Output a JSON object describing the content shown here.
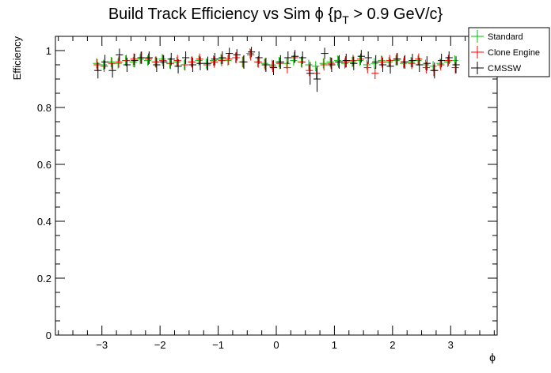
{
  "chart_data": {
    "type": "scatter",
    "title": "Build Track Efficiency vs Sim ϕ {p_T > 0.9 GeV/c}",
    "title_parts": {
      "main": "Build Track Efficiency vs Sim ϕ {p",
      "sub": "T",
      "tail": " > 0.9 GeV/c}"
    },
    "xlabel": "ϕ",
    "ylabel": "Efficiency",
    "xlim": [
      -3.8,
      3.8
    ],
    "ylim": [
      0,
      1.05
    ],
    "xticks": [
      -3,
      -2,
      -1,
      0,
      1,
      2,
      3
    ],
    "xtick_labels": [
      "−3",
      "−2",
      "−1",
      "0",
      "1",
      "2",
      "3"
    ],
    "yticks": [
      0,
      0.2,
      0.4,
      0.6,
      0.8,
      1
    ],
    "ytick_labels": [
      "0",
      "0.2",
      "0.4",
      "0.6",
      "0.8",
      "1"
    ],
    "x": [
      -3.08,
      -2.96,
      -2.83,
      -2.71,
      -2.58,
      -2.45,
      -2.33,
      -2.2,
      -2.07,
      -1.95,
      -1.82,
      -1.7,
      -1.57,
      -1.45,
      -1.32,
      -1.19,
      -1.07,
      -0.94,
      -0.82,
      -0.69,
      -0.57,
      -0.44,
      -0.31,
      -0.19,
      -0.06,
      0.06,
      0.19,
      0.31,
      0.44,
      0.57,
      0.69,
      0.82,
      0.94,
      1.07,
      1.19,
      1.32,
      1.45,
      1.57,
      1.7,
      1.82,
      1.95,
      2.07,
      2.2,
      2.33,
      2.45,
      2.58,
      2.71,
      2.83,
      2.96,
      3.08
    ],
    "x_error": 0.063,
    "series": [
      {
        "name": "Standard",
        "color": "#00c000",
        "values": [
          0.955,
          0.95,
          0.96,
          0.955,
          0.965,
          0.96,
          0.97,
          0.965,
          0.96,
          0.97,
          0.955,
          0.96,
          0.95,
          0.96,
          0.965,
          0.955,
          0.965,
          0.97,
          0.965,
          0.975,
          0.96,
          0.99,
          0.96,
          0.955,
          0.95,
          0.96,
          0.955,
          0.965,
          0.96,
          0.95,
          0.945,
          0.955,
          0.96,
          0.965,
          0.955,
          0.96,
          0.965,
          0.95,
          0.955,
          0.965,
          0.96,
          0.965,
          0.955,
          0.96,
          0.965,
          0.95,
          0.945,
          0.955,
          0.96,
          0.965
        ],
        "errors": [
          0.018,
          0.018,
          0.018,
          0.018,
          0.018,
          0.018,
          0.018,
          0.018,
          0.018,
          0.018,
          0.018,
          0.018,
          0.018,
          0.018,
          0.018,
          0.018,
          0.018,
          0.018,
          0.018,
          0.018,
          0.018,
          0.018,
          0.018,
          0.018,
          0.018,
          0.018,
          0.018,
          0.018,
          0.018,
          0.018,
          0.018,
          0.018,
          0.018,
          0.018,
          0.018,
          0.018,
          0.018,
          0.018,
          0.018,
          0.018,
          0.018,
          0.018,
          0.018,
          0.018,
          0.018,
          0.018,
          0.018,
          0.018,
          0.018,
          0.018
        ]
      },
      {
        "name": "Clone Engine",
        "color": "#ff0000",
        "values": [
          0.95,
          0.945,
          0.955,
          0.96,
          0.965,
          0.97,
          0.975,
          0.97,
          0.96,
          0.965,
          0.955,
          0.965,
          0.95,
          0.96,
          0.97,
          0.95,
          0.96,
          0.965,
          0.97,
          0.975,
          0.96,
          0.985,
          0.96,
          0.95,
          0.945,
          0.955,
          0.94,
          0.975,
          0.96,
          0.93,
          0.92,
          0.95,
          0.955,
          0.96,
          0.96,
          0.965,
          0.97,
          0.94,
          0.92,
          0.96,
          0.965,
          0.97,
          0.96,
          0.955,
          0.97,
          0.94,
          0.93,
          0.95,
          0.965,
          0.94
        ],
        "errors": [
          0.02,
          0.02,
          0.02,
          0.02,
          0.02,
          0.02,
          0.02,
          0.02,
          0.02,
          0.02,
          0.02,
          0.02,
          0.02,
          0.02,
          0.02,
          0.02,
          0.02,
          0.02,
          0.02,
          0.02,
          0.02,
          0.02,
          0.02,
          0.02,
          0.02,
          0.02,
          0.02,
          0.02,
          0.02,
          0.02,
          0.02,
          0.02,
          0.02,
          0.02,
          0.02,
          0.02,
          0.02,
          0.02,
          0.02,
          0.02,
          0.02,
          0.02,
          0.02,
          0.02,
          0.02,
          0.02,
          0.02,
          0.02,
          0.02,
          0.02
        ]
      },
      {
        "name": "CMSSW",
        "color": "#000000",
        "values": [
          0.93,
          0.96,
          0.93,
          0.985,
          0.95,
          0.965,
          0.975,
          0.975,
          0.95,
          0.96,
          0.97,
          0.945,
          0.975,
          0.95,
          0.955,
          0.955,
          0.97,
          0.975,
          0.99,
          0.985,
          0.96,
          0.995,
          0.975,
          0.95,
          0.94,
          0.96,
          0.975,
          0.98,
          0.975,
          0.92,
          0.9,
          0.99,
          0.95,
          0.96,
          0.965,
          0.955,
          0.98,
          0.975,
          0.96,
          0.95,
          0.945,
          0.97,
          0.96,
          0.965,
          0.95,
          0.955,
          0.93,
          0.965,
          0.975,
          0.95
        ],
        "errors": [
          0.028,
          0.025,
          0.025,
          0.022,
          0.025,
          0.024,
          0.022,
          0.022,
          0.025,
          0.024,
          0.022,
          0.025,
          0.022,
          0.025,
          0.024,
          0.024,
          0.022,
          0.022,
          0.02,
          0.02,
          0.024,
          0.018,
          0.022,
          0.025,
          0.026,
          0.024,
          0.022,
          0.022,
          0.022,
          0.04,
          0.045,
          0.02,
          0.025,
          0.024,
          0.024,
          0.024,
          0.022,
          0.022,
          0.024,
          0.025,
          0.026,
          0.022,
          0.024,
          0.024,
          0.025,
          0.025,
          0.028,
          0.024,
          0.022,
          0.03
        ]
      }
    ],
    "legend": {
      "placement": "top-right",
      "entries": [
        {
          "label": "Standard",
          "color": "#00c000"
        },
        {
          "label": "Clone Engine",
          "color": "#ff0000"
        },
        {
          "label": "CMSSW",
          "color": "#000000"
        }
      ]
    },
    "grid": false
  }
}
